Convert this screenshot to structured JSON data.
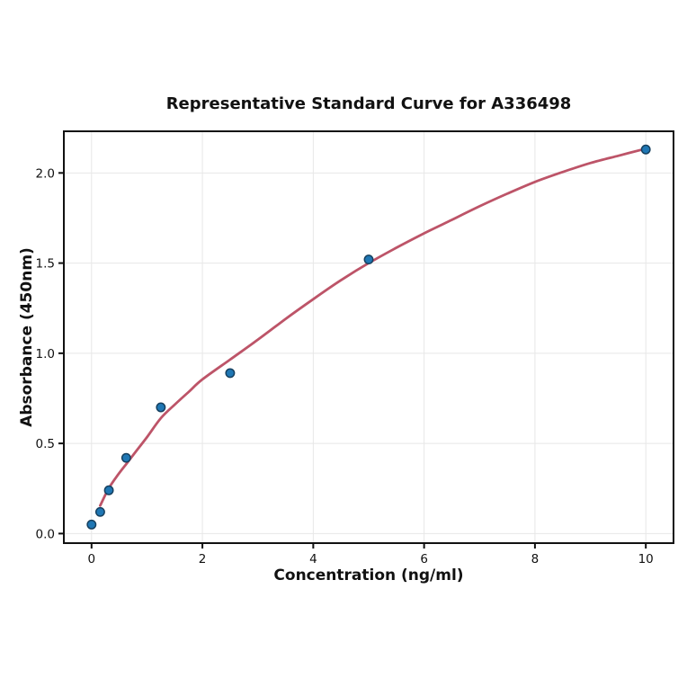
{
  "chart_data": {
    "type": "scatter",
    "title": "Representative Standard Curve for A336498",
    "xlabel": "Concentration (ng/ml)",
    "ylabel": "Absorbance (450nm)",
    "xlim": [
      -0.5,
      10.5
    ],
    "ylim": [
      -0.053,
      2.231
    ],
    "grid": true,
    "legend": "none",
    "x_ticks": {
      "values": [
        0,
        2,
        4,
        6,
        8,
        10
      ],
      "labels": [
        "0",
        "2",
        "4",
        "6",
        "8",
        "10"
      ]
    },
    "y_ticks": {
      "values": [
        0,
        0.5,
        1,
        1.5,
        2
      ],
      "labels": [
        "0.0",
        "0.5",
        "1.0",
        "1.5",
        "2.0"
      ]
    },
    "series": [
      {
        "name": "standard-points",
        "type": "scatter",
        "x": [
          0,
          0.156,
          0.3125,
          0.625,
          1.25,
          2.5,
          5,
          10
        ],
        "y": [
          0.05,
          0.12,
          0.24,
          0.42,
          0.7,
          0.89,
          1.52,
          2.13
        ],
        "marker_color": "#1f77b4",
        "marker_edge_color": "#16405f"
      },
      {
        "name": "fitted-curve",
        "type": "line",
        "color": "#bd5468",
        "x": [
          0.156,
          0.3,
          0.45,
          0.625,
          0.8,
          1.0,
          1.25,
          1.5,
          1.75,
          2.0,
          2.5,
          3.0,
          3.5,
          4.0,
          4.5,
          5.0,
          5.5,
          6.0,
          6.5,
          7.0,
          7.5,
          8.0,
          8.5,
          9.0,
          9.5,
          10.0
        ],
        "y": [
          0.155,
          0.245,
          0.315,
          0.385,
          0.455,
          0.535,
          0.64,
          0.715,
          0.785,
          0.855,
          0.965,
          1.075,
          1.19,
          1.3,
          1.405,
          1.5,
          1.585,
          1.665,
          1.74,
          1.815,
          1.885,
          1.95,
          2.005,
          2.055,
          2.095,
          2.135
        ]
      }
    ],
    "colors": {
      "background": "#ffffff",
      "grid": "#e7e7e7",
      "spine": "#111111",
      "tick": "#111111",
      "text": "#111111"
    }
  }
}
